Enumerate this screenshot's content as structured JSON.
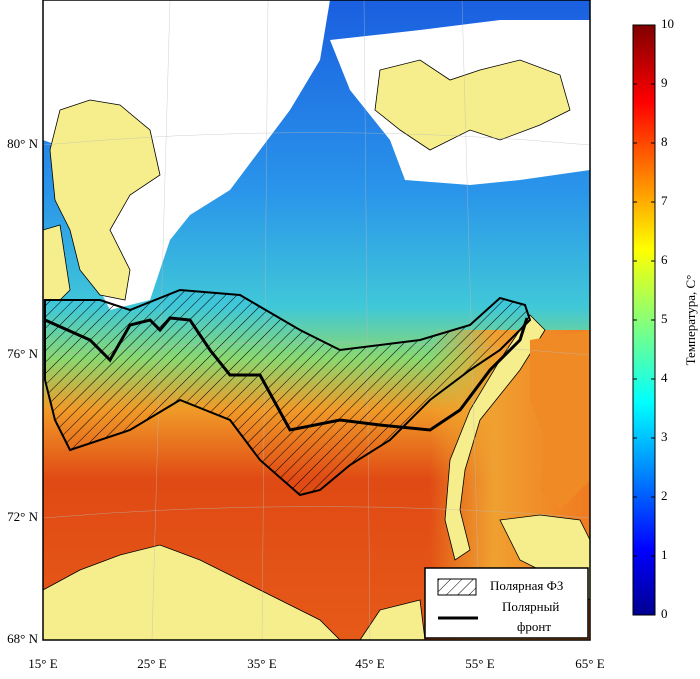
{
  "map": {
    "lat_labels": [
      "80° N",
      "76° N",
      "72° N",
      "68° N"
    ],
    "lon_labels": [
      "15° E",
      "25° E",
      "35° E",
      "45° E",
      "55° E",
      "65° E"
    ],
    "legend": {
      "zone": "Полярная ФЗ",
      "front_lines": [
        "Полярный",
        "фронт"
      ]
    }
  },
  "colorbar": {
    "label": "Температура, С°",
    "range": [
      0,
      10
    ],
    "ticks": [
      0,
      1,
      2,
      3,
      4,
      5,
      6,
      7,
      8,
      9,
      10
    ]
  }
}
